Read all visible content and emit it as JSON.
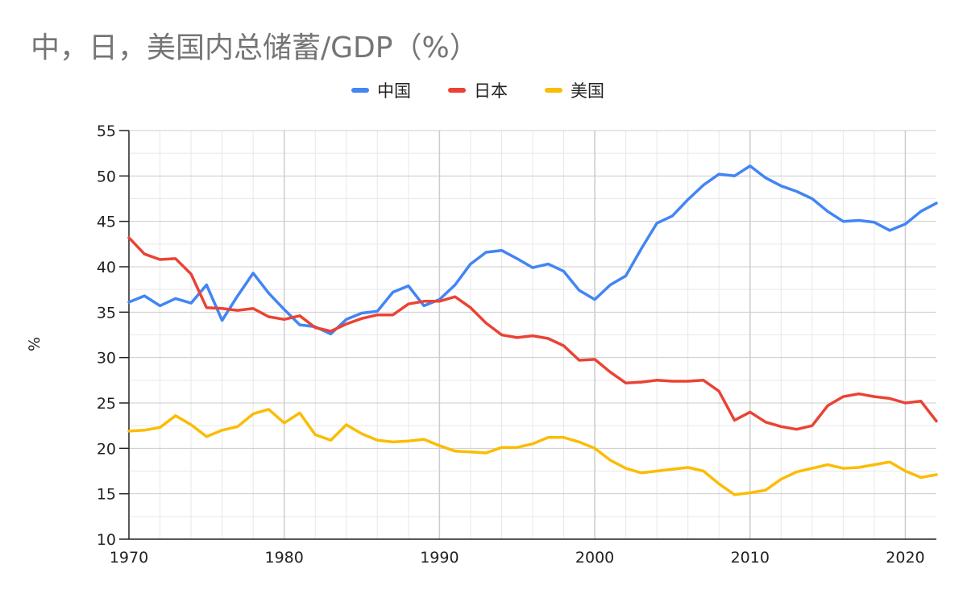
{
  "title": "中，日，美国内总储蓄/GDP（%）",
  "chart_data": {
    "type": "line",
    "title": "中，日，美国内总储蓄/GDP（%）",
    "xlabel": "",
    "ylabel": "%",
    "xlim": [
      1970,
      2022
    ],
    "ylim": [
      10,
      55
    ],
    "y_ticks": [
      10,
      15,
      20,
      25,
      30,
      35,
      40,
      45,
      50,
      55
    ],
    "x_ticks": [
      1970,
      1980,
      1990,
      2000,
      2010,
      2020
    ],
    "grid": true,
    "legend": "top-center",
    "x": [
      1970,
      1971,
      1972,
      1973,
      1974,
      1975,
      1976,
      1977,
      1978,
      1979,
      1980,
      1981,
      1982,
      1983,
      1984,
      1985,
      1986,
      1987,
      1988,
      1989,
      1990,
      1991,
      1992,
      1993,
      1994,
      1995,
      1996,
      1997,
      1998,
      1999,
      2000,
      2001,
      2002,
      2003,
      2004,
      2005,
      2006,
      2007,
      2008,
      2009,
      2010,
      2011,
      2012,
      2013,
      2014,
      2015,
      2016,
      2017,
      2018,
      2019,
      2020,
      2021,
      2022
    ],
    "series": [
      {
        "name": "中国",
        "color": "#4285F4",
        "values": [
          36.1,
          36.8,
          35.7,
          36.5,
          36.0,
          38.0,
          34.1,
          36.8,
          39.3,
          37.1,
          35.3,
          33.6,
          33.4,
          32.6,
          34.2,
          34.9,
          35.1,
          37.2,
          37.9,
          35.7,
          36.4,
          38.0,
          40.3,
          41.6,
          41.8,
          40.9,
          39.9,
          40.3,
          39.5,
          37.4,
          36.4,
          38.0,
          39.0,
          42.0,
          44.8,
          45.6,
          47.4,
          49.0,
          50.2,
          50.0,
          51.1,
          49.8,
          48.9,
          48.3,
          47.5,
          46.1,
          45.0,
          45.1,
          44.9,
          44.0,
          44.7,
          46.1,
          47.0
        ]
      },
      {
        "name": "日本",
        "color": "#EA4335",
        "values": [
          43.2,
          41.4,
          40.8,
          40.9,
          39.2,
          35.5,
          35.4,
          35.2,
          35.4,
          34.5,
          34.2,
          34.6,
          33.3,
          32.9,
          33.7,
          34.3,
          34.7,
          34.7,
          35.9,
          36.2,
          36.2,
          36.7,
          35.5,
          33.8,
          32.5,
          32.2,
          32.4,
          32.1,
          31.3,
          29.7,
          29.8,
          28.4,
          27.2,
          27.3,
          27.5,
          27.4,
          27.4,
          27.5,
          26.3,
          23.1,
          24.0,
          22.9,
          22.4,
          22.1,
          22.5,
          24.7,
          25.7,
          26.0,
          25.7,
          25.5,
          25.0,
          25.2,
          23.0
        ]
      },
      {
        "name": "美国",
        "color": "#FBBC04",
        "values": [
          21.9,
          22.0,
          22.3,
          23.6,
          22.6,
          21.3,
          22.0,
          22.4,
          23.8,
          24.3,
          22.8,
          23.9,
          21.5,
          20.9,
          22.6,
          21.6,
          20.9,
          20.7,
          20.8,
          21.0,
          20.3,
          19.7,
          19.6,
          19.5,
          20.1,
          20.1,
          20.5,
          21.2,
          21.2,
          20.7,
          20.0,
          18.7,
          17.8,
          17.3,
          17.5,
          17.7,
          17.9,
          17.5,
          16.1,
          14.9,
          15.1,
          15.4,
          16.6,
          17.4,
          17.8,
          18.2,
          17.8,
          17.9,
          18.2,
          18.5,
          17.5,
          16.8,
          17.1
        ]
      }
    ]
  }
}
